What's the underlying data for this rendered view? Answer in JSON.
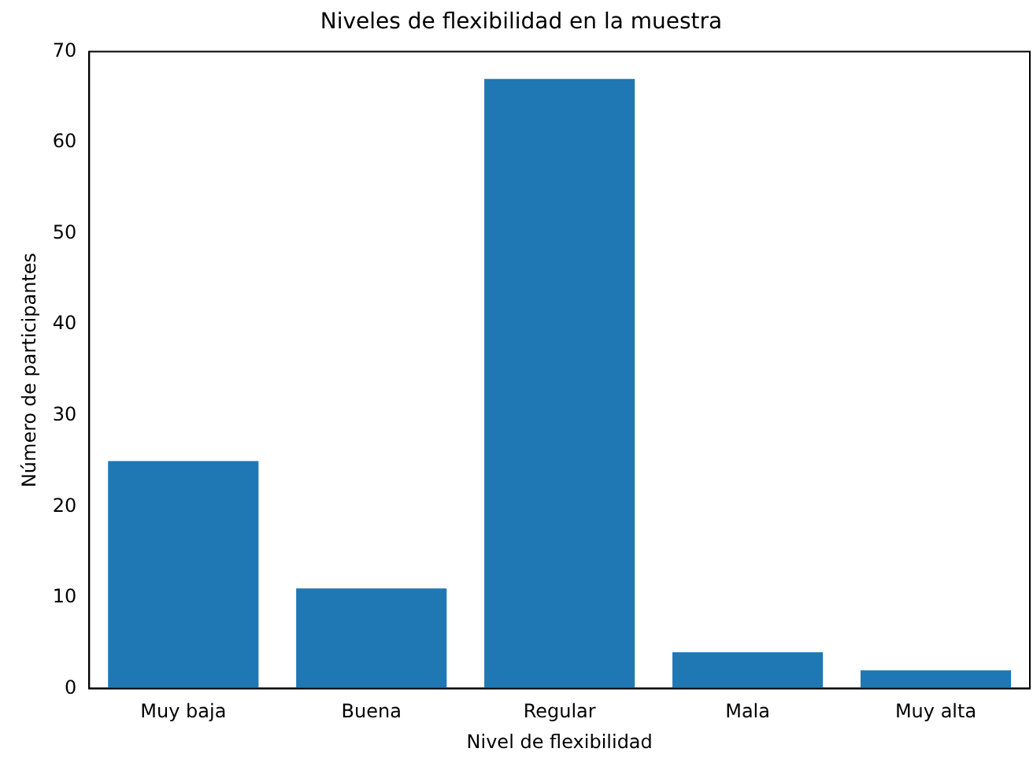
{
  "chart_data": {
    "type": "bar",
    "title": "Niveles de flexibilidad en la muestra",
    "xlabel": "Nivel de flexibilidad",
    "ylabel": "Número de participantes",
    "categories": [
      "Muy baja",
      "Buena",
      "Regular",
      "Mala",
      "Muy alta"
    ],
    "values": [
      25,
      11,
      67,
      4,
      2
    ],
    "color": "#1f77b4",
    "ylim": [
      0,
      70
    ],
    "yticks": [
      0,
      10,
      20,
      30,
      40,
      50,
      60,
      70
    ],
    "grid": false,
    "legend": false
  }
}
